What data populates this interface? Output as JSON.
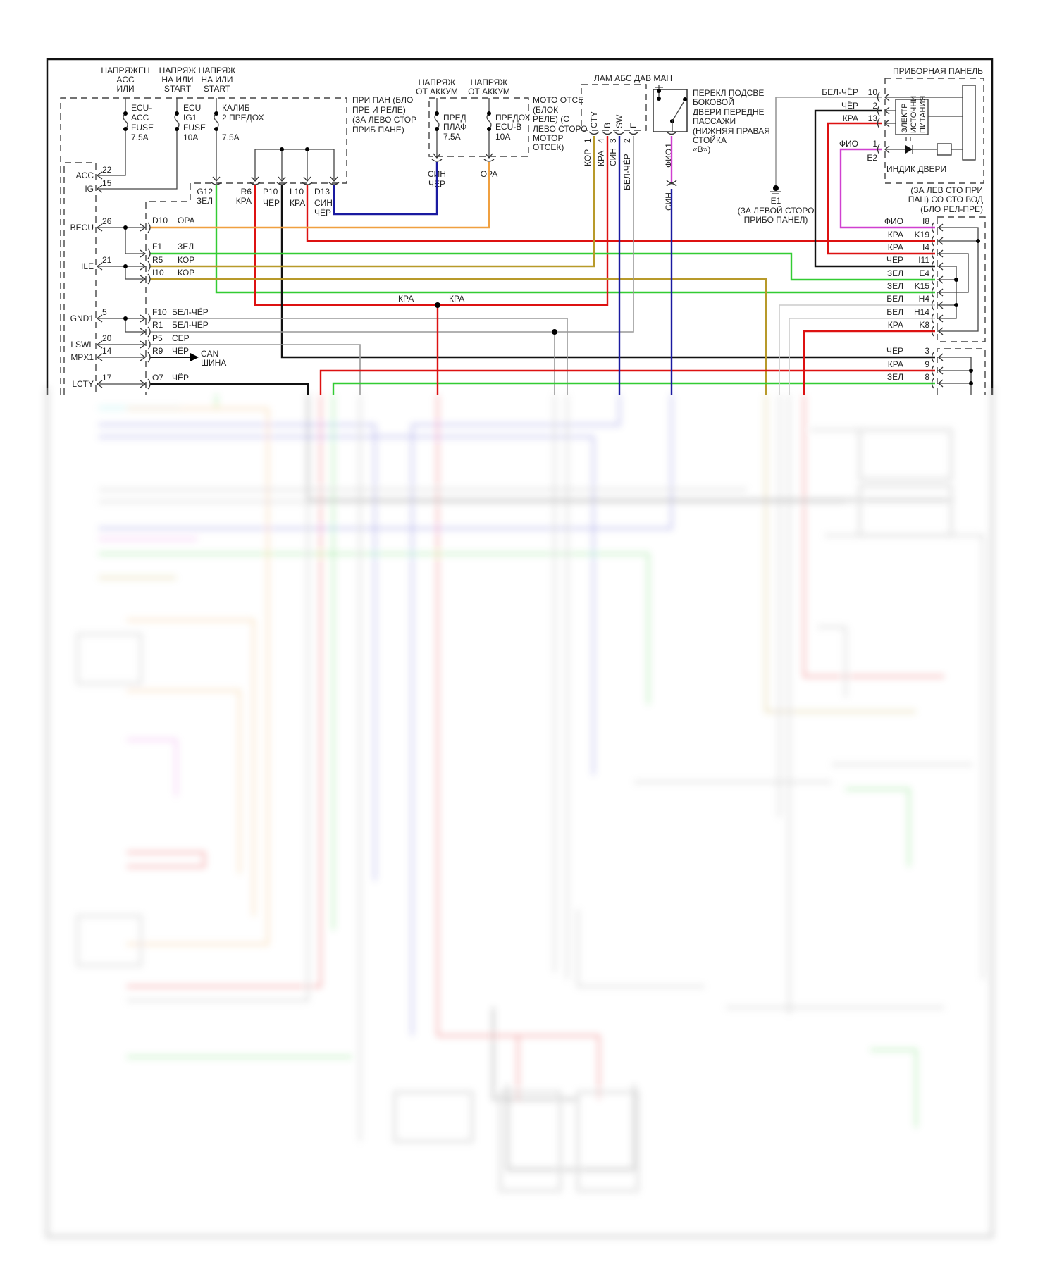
{
  "top_supplies": [
    {
      "lines": [
        "НАПРЯЖЕН",
        "ACC",
        "ИЛИ"
      ]
    },
    {
      "lines": [
        "НАПРЯЖ",
        "НА ИЛИ",
        "START"
      ]
    },
    {
      "lines": [
        "НАПРЯЖ",
        "НА ИЛИ",
        "START"
      ]
    },
    {
      "lines": [
        "НАПРЯЖ",
        "ОТ АККУМ"
      ]
    },
    {
      "lines": [
        "НАПРЯЖ",
        "ОТ АККУМ"
      ]
    }
  ],
  "fuses": [
    {
      "lines": [
        "ECU-",
        "ACC",
        "FUSE",
        "7.5A"
      ]
    },
    {
      "lines": [
        "ECU",
        "IG1",
        "FUSE",
        "10A"
      ]
    },
    {
      "lines": [
        "КАЛИБ",
        "2 ПРЕДОХ",
        "7.5A"
      ]
    },
    {
      "lines": [
        "ПРЕД",
        "ПЛАФ",
        "7.5A"
      ]
    },
    {
      "lines": [
        "ПРЕДОХ",
        "ECU-B",
        "10A"
      ]
    }
  ],
  "junction_block_label": [
    "ПРИ ПАН (БЛО",
    "ПРЕ И РЕЛЕ)",
    "(ЗА ЛЕВО СТОР",
    "ПРИБ ПАНЕ)"
  ],
  "engine_block_label": [
    "МОТО ОТСЕ",
    "(БЛОК",
    "РЕЛЕ) (С",
    "ЛЕВО СТОРО",
    "МОТОР ОТСЕК)"
  ],
  "jb_outputs": [
    {
      "pin": "G12",
      "wire": "ЗЕЛ"
    },
    {
      "pin": "R6",
      "wire": "КРА"
    },
    {
      "pin": "P10",
      "wire": "ЧЁР"
    },
    {
      "pin": "L10",
      "wire": "КРА"
    },
    {
      "pin": "D13",
      "wire": [
        "СИН",
        "ЧЁР"
      ]
    }
  ],
  "engine_outputs": [
    {
      "wire": [
        "СИН",
        "ЧЁР"
      ]
    },
    {
      "wire": [
        "ОРА"
      ]
    }
  ],
  "ecu_pins": [
    {
      "name": "ACC",
      "num": "22"
    },
    {
      "name": "IG",
      "num": "15"
    },
    {
      "name": "BECU",
      "num": "26"
    },
    {
      "name": "ILE",
      "num": "21"
    },
    {
      "name": "GND1",
      "num": "5"
    },
    {
      "name": "LSWL",
      "num": "20"
    },
    {
      "name": "MPX1",
      "num": "14"
    },
    {
      "name": "LCTY",
      "num": "17"
    }
  ],
  "jb_pins": [
    {
      "pin": "D10",
      "wire": "ОРА"
    },
    {
      "pin": "F1",
      "wire": "ЗЕЛ"
    },
    {
      "pin": "R5",
      "wire": "КОР"
    },
    {
      "pin": "I10",
      "wire": "КОР"
    },
    {
      "pin": "F10",
      "wire": "БЕЛ-ЧЁР"
    },
    {
      "pin": "R1",
      "wire": "БЕЛ-ЧЁР"
    },
    {
      "pin": "P5",
      "wire": "СЕР"
    },
    {
      "pin": "R9",
      "wire": "ЧЁР"
    },
    {
      "pin": "O7",
      "wire": "ЧЁР"
    }
  ],
  "can_bus": [
    "CAN",
    "ШИНА"
  ],
  "splice_labels": [
    "КРА",
    "КРА"
  ],
  "abs_lamp": {
    "title": "ЛАМ АБС ДАВ МАН",
    "pins": [
      {
        "name": "CTY",
        "num": "1",
        "wire": "КОР"
      },
      {
        "name": "B",
        "num": "4",
        "wire": "КРА"
      },
      {
        "name": "SW",
        "num": "3",
        "wire": "СИН"
      },
      {
        "name": "E",
        "num": "2",
        "wire": "БЕЛ-ЧЁР"
      }
    ]
  },
  "door_switch": {
    "label": [
      "ПЕРЕКЛ ПОДСВЕ",
      "БОКОВОЙ",
      "ДВЕРИ ПЕРЕДНЕ",
      "ПАССАЖИ",
      "(НИЖНЯЯ ПРАВАЯ",
      "СТОЙКА",
      "«В»)"
    ],
    "pin": "1",
    "wire_top": "ФИО",
    "wire_bottom": "СИН"
  },
  "ground": {
    "name": "E1",
    "label": [
      "(ЗА ЛЕВОЙ СТОРО",
      "ПРИБО ПАНЕЛ)"
    ]
  },
  "instrument_panel": {
    "title": "ПРИБОРНАЯ ПАНЕЛЬ",
    "pins": [
      {
        "wire": "БЕЛ-ЧЁР",
        "num": "10"
      },
      {
        "wire": "ЧЁР",
        "num": "2"
      },
      {
        "wire": "КРА",
        "num": "13"
      },
      {
        "wire": "ФИО",
        "num": "1"
      }
    ],
    "connector": "E2",
    "power_supply": [
      "ЭЛЕКТР",
      "ИСТОЧНИ",
      "ПИТАНИЯ"
    ],
    "door_indicator": "ИНДИК ДВЕРИ"
  },
  "relay_block": {
    "label": [
      "(ЗА ЛЕВ СТО ПРИ",
      "ПАН) СО СТО ВОД",
      "(БЛО РЕЛ-ПРЕ)"
    ],
    "pins": [
      {
        "wire": "ФИО",
        "pin": "I8"
      },
      {
        "wire": "КРА",
        "pin": "K19"
      },
      {
        "wire": "КРА",
        "pin": "I4"
      },
      {
        "wire": "ЧЁР",
        "pin": "I11"
      },
      {
        "wire": "ЗЕЛ",
        "pin": "E4"
      },
      {
        "wire": "ЗЕЛ",
        "pin": "K15"
      },
      {
        "wire": "БЕЛ",
        "pin": "H4"
      },
      {
        "wire": "БЕЛ",
        "pin": "H14"
      },
      {
        "wire": "КРА",
        "pin": "K8"
      }
    ],
    "pins2": [
      {
        "wire": "ЧЁР",
        "pin": "3"
      },
      {
        "wire": "КРА",
        "pin": "9"
      },
      {
        "wire": "ЗЕЛ",
        "pin": "8"
      }
    ]
  },
  "wire_colors": {
    "ЗЕЛ": "#33cc33",
    "КРА": "#dd1111",
    "ЧЁР": "#111111",
    "СИН": "#1a1aa0",
    "ОРА": "#f0a040",
    "КОР": "#b89a2a",
    "БЕЛ-ЧЁР": "#999999",
    "СЕР": "#999999",
    "ФИО": "#d040d0",
    "БЕЛ": "#cccccc"
  }
}
